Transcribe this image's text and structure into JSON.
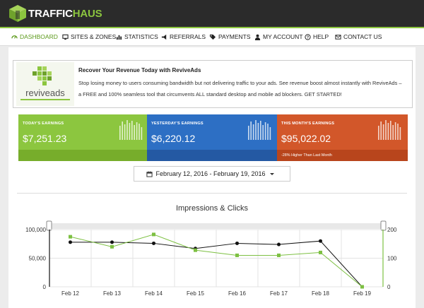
{
  "brand": {
    "name_a": "TRAFFIC",
    "name_b": "HAUS"
  },
  "nav": {
    "items": [
      {
        "label": "DASHBOARD",
        "icon": "gauge-icon"
      },
      {
        "label": "SITES & ZONES",
        "icon": "monitor-icon"
      },
      {
        "label": "STATISTICS",
        "icon": "bar-chart-icon"
      },
      {
        "label": "REFERRALS",
        "icon": "bullhorn-icon"
      },
      {
        "label": "PAYMENTS",
        "icon": "tag-icon"
      },
      {
        "label": "MY ACCOUNT",
        "icon": "user-icon"
      },
      {
        "label": "HELP",
        "icon": "question-icon"
      },
      {
        "label": "CONTACT US",
        "icon": "envelope-icon"
      }
    ]
  },
  "ad": {
    "logo_text": "reviveads",
    "title": "Recover Your Revenue Today with ReviveAds",
    "line1": "Stop losing money to users consuming bandwidth but not delivering traffic to your ads. See revenue boost almost instantly with ReviveAds –",
    "line2": "a FREE and 100% seamless tool that circumvents ALL standard desktop and mobile ad blockers. GET STARTED!"
  },
  "cards": [
    {
      "label": "TODAY'S EARNINGS",
      "value": "$7,251.23",
      "color": "#8cc63f",
      "foot_color": "#77ad2b",
      "note": ""
    },
    {
      "label": "YESTERDAY'S EARNINGS",
      "value": "$6,220.12",
      "color": "#2d6fc4",
      "foot_color": "#2459a3",
      "note": ""
    },
    {
      "label": "THIS MONTH'S EARNINGS",
      "value": "$95,022.02",
      "color": "#d2572a",
      "foot_color": "#b8451c",
      "note": "-28% Higher Than Last Month"
    }
  ],
  "date_range": "February 12, 2016 - February 19, 2016",
  "chart_data": {
    "type": "line",
    "title": "Impressions & Clicks",
    "categories": [
      "Feb 12",
      "Feb 13",
      "Feb 14",
      "Feb 15",
      "Feb 16",
      "Feb 17",
      "Feb 18",
      "Feb 19"
    ],
    "series": [
      {
        "values": [
          78000,
          78000,
          76000,
          67000,
          76000,
          74000,
          80000,
          0
        ],
        "color": "#111111",
        "axis": "left"
      },
      {
        "values": [
          175,
          140,
          183,
          128,
          110,
          110,
          120,
          0
        ],
        "color": "#7dc042",
        "axis": "right"
      }
    ],
    "y_left": {
      "min": 0,
      "max": 100000,
      "ticks": [
        "0",
        "50,000",
        "100,000"
      ]
    },
    "y_right": {
      "min": 0,
      "max": 200,
      "ticks": [
        "0",
        "100",
        "200"
      ]
    },
    "grid": true
  }
}
